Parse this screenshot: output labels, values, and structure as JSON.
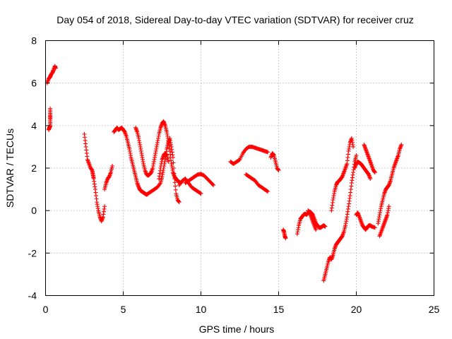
{
  "chart_data": {
    "type": "scatter",
    "title": "Day 054 of 2018, Sidereal Day-to-day VTEC variation (SDTVAR) for receiver cruz",
    "xlabel": "GPS time / hours",
    "ylabel": "SDTVAR / TECUs",
    "xlim": [
      0,
      25
    ],
    "ylim": [
      -4,
      8
    ],
    "xticks": [
      0,
      5,
      10,
      15,
      20,
      25
    ],
    "yticks": [
      -4,
      -2,
      0,
      2,
      4,
      6,
      8
    ],
    "grid": true,
    "marker": "plus",
    "color": "#ff0000",
    "segments": [
      {
        "name": "arc-01",
        "points": [
          [
            0.1,
            6.0
          ],
          [
            0.2,
            6.2
          ],
          [
            0.3,
            6.3
          ],
          [
            0.35,
            6.4
          ],
          [
            0.45,
            6.5
          ],
          [
            0.5,
            6.6
          ],
          [
            0.6,
            6.8
          ],
          [
            0.65,
            6.7
          ]
        ]
      },
      {
        "name": "arc-02",
        "points": [
          [
            0.2,
            3.8
          ],
          [
            0.25,
            3.9
          ],
          [
            0.3,
            4.0
          ],
          [
            0.3,
            4.3
          ],
          [
            0.3,
            4.5
          ],
          [
            0.3,
            4.8
          ]
        ]
      },
      {
        "name": "arc-03",
        "points": [
          [
            2.5,
            3.6
          ],
          [
            2.6,
            3.0
          ],
          [
            2.7,
            2.4
          ],
          [
            2.8,
            2.2
          ],
          [
            2.9,
            2.0
          ],
          [
            3.0,
            1.9
          ],
          [
            3.05,
            1.7
          ],
          [
            3.1,
            1.5
          ],
          [
            3.2,
            1.0
          ],
          [
            3.3,
            0.4
          ],
          [
            3.4,
            0.0
          ],
          [
            3.5,
            -0.3
          ],
          [
            3.6,
            -0.5
          ],
          [
            3.7,
            -0.3
          ],
          [
            3.8,
            0.2
          ]
        ]
      },
      {
        "name": "arc-04",
        "points": [
          [
            3.8,
            1.0
          ],
          [
            3.9,
            1.3
          ],
          [
            4.0,
            1.5
          ],
          [
            4.1,
            1.6
          ],
          [
            4.2,
            1.8
          ],
          [
            4.3,
            2.1
          ]
        ]
      },
      {
        "name": "arc-05",
        "points": [
          [
            4.4,
            3.7
          ],
          [
            4.5,
            3.8
          ],
          [
            4.6,
            3.9
          ],
          [
            4.7,
            3.8
          ],
          [
            4.8,
            3.85
          ],
          [
            4.9,
            3.9
          ],
          [
            5.0,
            3.8
          ],
          [
            5.1,
            3.7
          ],
          [
            5.2,
            3.5
          ],
          [
            5.3,
            3.2
          ],
          [
            5.4,
            2.9
          ],
          [
            5.5,
            2.5
          ],
          [
            5.6,
            2.2
          ],
          [
            5.7,
            1.9
          ],
          [
            5.8,
            1.6
          ],
          [
            5.9,
            1.3
          ],
          [
            6.0,
            1.1
          ],
          [
            6.1,
            0.95
          ],
          [
            6.2,
            0.9
          ],
          [
            6.3,
            0.85
          ],
          [
            6.4,
            0.8
          ],
          [
            6.5,
            0.75
          ],
          [
            6.6,
            0.8
          ],
          [
            6.8,
            0.9
          ],
          [
            7.0,
            1.0
          ],
          [
            7.2,
            1.1
          ],
          [
            7.4,
            1.3
          ],
          [
            7.5,
            1.6
          ],
          [
            7.6,
            2.0
          ],
          [
            7.7,
            2.4
          ],
          [
            7.8,
            2.9
          ],
          [
            7.9,
            3.2
          ],
          [
            8.0,
            3.4
          ],
          [
            8.1,
            3.0
          ],
          [
            8.2,
            2.5
          ],
          [
            8.3,
            1.5
          ],
          [
            8.4,
            0.8
          ],
          [
            8.5,
            0.5
          ],
          [
            8.6,
            0.4
          ]
        ]
      },
      {
        "name": "arc-06",
        "points": [
          [
            5.8,
            3.9
          ],
          [
            5.9,
            3.7
          ],
          [
            6.0,
            3.4
          ],
          [
            6.1,
            3.0
          ],
          [
            6.2,
            2.6
          ],
          [
            6.3,
            2.2
          ],
          [
            6.4,
            1.9
          ],
          [
            6.5,
            1.7
          ],
          [
            6.6,
            1.65
          ],
          [
            6.7,
            1.7
          ],
          [
            6.8,
            1.8
          ],
          [
            6.9,
            2.0
          ],
          [
            7.0,
            2.4
          ],
          [
            7.1,
            2.8
          ],
          [
            7.2,
            3.2
          ],
          [
            7.3,
            3.6
          ],
          [
            7.4,
            3.9
          ],
          [
            7.5,
            4.1
          ],
          [
            7.6,
            4.2
          ],
          [
            7.7,
            4.0
          ],
          [
            7.8,
            3.7
          ],
          [
            7.9,
            3.3
          ],
          [
            8.0,
            2.8
          ],
          [
            8.1,
            2.2
          ],
          [
            8.2,
            1.8
          ],
          [
            8.3,
            1.6
          ],
          [
            8.4,
            1.5
          ],
          [
            8.5,
            1.4
          ],
          [
            8.6,
            1.35
          ],
          [
            8.7,
            1.3
          ]
        ]
      },
      {
        "name": "arc-07",
        "points": [
          [
            7.3,
            1.5
          ],
          [
            7.4,
            2.0
          ],
          [
            7.5,
            2.4
          ],
          [
            7.6,
            2.6
          ],
          [
            7.7,
            2.7
          ],
          [
            7.8,
            2.6
          ],
          [
            7.9,
            2.3
          ]
        ]
      },
      {
        "name": "arc-08",
        "points": [
          [
            8.6,
            1.2
          ],
          [
            8.8,
            1.4
          ],
          [
            9.0,
            1.5
          ],
          [
            9.2,
            1.3
          ],
          [
            9.4,
            1.1
          ],
          [
            9.6,
            1.0
          ],
          [
            9.8,
            0.9
          ],
          [
            10.0,
            0.8
          ]
        ]
      },
      {
        "name": "arc-09",
        "points": [
          [
            9.0,
            1.3
          ],
          [
            9.2,
            1.4
          ],
          [
            9.4,
            1.5
          ],
          [
            9.6,
            1.6
          ],
          [
            9.8,
            1.7
          ],
          [
            10.0,
            1.72
          ],
          [
            10.2,
            1.65
          ],
          [
            10.4,
            1.5
          ],
          [
            10.6,
            1.35
          ],
          [
            10.8,
            1.2
          ]
        ]
      },
      {
        "name": "arc-10",
        "points": [
          [
            11.9,
            2.3
          ],
          [
            12.1,
            2.2
          ],
          [
            12.3,
            2.3
          ],
          [
            12.5,
            2.4
          ],
          [
            12.7,
            2.7
          ],
          [
            12.9,
            2.9
          ],
          [
            13.1,
            3.0
          ],
          [
            13.3,
            3.0
          ],
          [
            13.5,
            2.95
          ],
          [
            13.7,
            2.9
          ],
          [
            13.9,
            2.85
          ],
          [
            14.1,
            2.8
          ],
          [
            14.3,
            2.75
          ]
        ]
      },
      {
        "name": "arc-11",
        "points": [
          [
            12.9,
            1.7
          ],
          [
            13.1,
            1.6
          ],
          [
            13.3,
            1.5
          ],
          [
            13.5,
            1.4
          ],
          [
            13.7,
            1.2
          ],
          [
            13.9,
            1.1
          ],
          [
            14.1,
            1.0
          ],
          [
            14.3,
            0.9
          ]
        ]
      },
      {
        "name": "arc-12",
        "points": [
          [
            14.5,
            2.5
          ],
          [
            14.6,
            2.7
          ],
          [
            14.7,
            2.6
          ],
          [
            14.8,
            2.3
          ],
          [
            14.9,
            2.0
          ],
          [
            15.0,
            1.9
          ]
        ]
      },
      {
        "name": "arc-13",
        "points": [
          [
            15.3,
            -0.9
          ],
          [
            15.35,
            -1.0
          ],
          [
            15.4,
            -1.2
          ],
          [
            15.45,
            -1.3
          ]
        ]
      },
      {
        "name": "arc-14",
        "points": [
          [
            16.2,
            -1.1
          ],
          [
            16.3,
            -0.7
          ],
          [
            16.4,
            -0.4
          ],
          [
            16.5,
            -0.3
          ],
          [
            16.6,
            -0.2
          ],
          [
            16.7,
            -0.15
          ],
          [
            16.8,
            -0.2
          ],
          [
            16.9,
            -0.1
          ],
          [
            17.0,
            -0.05
          ],
          [
            17.1,
            -0.1
          ],
          [
            17.2,
            -0.2
          ],
          [
            17.3,
            -0.4
          ],
          [
            17.4,
            -0.6
          ],
          [
            17.5,
            -0.7
          ],
          [
            17.6,
            -0.8
          ],
          [
            17.7,
            -0.8
          ],
          [
            17.8,
            -0.75
          ],
          [
            17.9,
            -0.7
          ],
          [
            18.0,
            -0.75
          ]
        ]
      },
      {
        "name": "arc-15",
        "points": [
          [
            16.9,
            0.0
          ],
          [
            17.0,
            -0.1
          ],
          [
            17.1,
            -0.3
          ],
          [
            17.2,
            -0.5
          ],
          [
            17.3,
            -0.7
          ],
          [
            17.4,
            -0.9
          ]
        ]
      },
      {
        "name": "arc-16",
        "points": [
          [
            17.9,
            -3.3
          ],
          [
            18.0,
            -3.0
          ],
          [
            18.1,
            -2.7
          ],
          [
            18.2,
            -2.4
          ],
          [
            18.3,
            -2.2
          ],
          [
            18.4,
            -2.3
          ],
          [
            18.5,
            -2.1
          ],
          [
            18.6,
            -1.8
          ],
          [
            18.7,
            -1.6
          ],
          [
            18.8,
            -1.5
          ],
          [
            18.9,
            -1.4
          ],
          [
            19.0,
            -1.3
          ],
          [
            19.1,
            -1.2
          ],
          [
            19.2,
            -1.0
          ],
          [
            19.3,
            -0.7
          ],
          [
            19.4,
            -0.3
          ],
          [
            19.5,
            0.2
          ],
          [
            19.6,
            0.7
          ],
          [
            19.7,
            1.3
          ],
          [
            19.8,
            1.8
          ],
          [
            19.9,
            2.3
          ],
          [
            20.0,
            2.6
          ]
        ]
      },
      {
        "name": "arc-17",
        "points": [
          [
            18.4,
            0.0
          ],
          [
            18.5,
            0.5
          ],
          [
            18.6,
            0.9
          ],
          [
            18.7,
            1.2
          ],
          [
            18.8,
            1.35
          ],
          [
            18.9,
            1.4
          ],
          [
            19.0,
            1.5
          ],
          [
            19.1,
            1.6
          ],
          [
            19.2,
            1.8
          ],
          [
            19.3,
            2.0
          ],
          [
            19.4,
            2.2
          ],
          [
            19.5,
            2.8
          ],
          [
            19.6,
            3.2
          ],
          [
            19.7,
            3.4
          ],
          [
            19.8,
            3.0
          ]
        ]
      },
      {
        "name": "arc-18",
        "points": [
          [
            19.9,
            2.0
          ],
          [
            20.0,
            2.2
          ],
          [
            20.1,
            2.3
          ],
          [
            20.2,
            2.25
          ],
          [
            20.3,
            2.2
          ],
          [
            20.4,
            2.1
          ],
          [
            20.5,
            2.0
          ],
          [
            20.6,
            1.9
          ],
          [
            20.7,
            1.8
          ],
          [
            20.8,
            1.7
          ],
          [
            20.9,
            1.5
          ]
        ]
      },
      {
        "name": "arc-19",
        "points": [
          [
            20.0,
            -0.2
          ],
          [
            20.1,
            -0.1
          ],
          [
            20.2,
            -0.3
          ],
          [
            20.3,
            -0.5
          ],
          [
            20.4,
            -0.7
          ],
          [
            20.5,
            -0.8
          ],
          [
            20.6,
            -0.9
          ],
          [
            20.7,
            -0.8
          ],
          [
            20.8,
            -0.7
          ],
          [
            20.9,
            -0.7
          ],
          [
            21.0,
            -0.75
          ],
          [
            21.2,
            -0.8
          ]
        ]
      },
      {
        "name": "arc-20",
        "points": [
          [
            20.5,
            3.1
          ],
          [
            20.6,
            2.9
          ],
          [
            20.7,
            2.7
          ],
          [
            20.8,
            2.5
          ],
          [
            20.9,
            2.3
          ],
          [
            21.0,
            2.1
          ],
          [
            21.1,
            1.9
          ],
          [
            21.2,
            1.8
          ]
        ]
      },
      {
        "name": "arc-21",
        "points": [
          [
            21.4,
            -0.6
          ],
          [
            21.5,
            -0.2
          ],
          [
            21.6,
            0.2
          ],
          [
            21.7,
            0.5
          ],
          [
            21.8,
            0.8
          ],
          [
            21.9,
            1.0
          ],
          [
            22.0,
            1.1
          ],
          [
            22.1,
            1.2
          ],
          [
            22.2,
            1.4
          ],
          [
            22.3,
            1.7
          ],
          [
            22.4,
            2.0
          ],
          [
            22.5,
            2.2
          ],
          [
            22.6,
            2.4
          ],
          [
            22.7,
            2.6
          ],
          [
            22.8,
            2.9
          ],
          [
            22.9,
            3.1
          ]
        ]
      },
      {
        "name": "arc-22",
        "points": [
          [
            21.5,
            -1.2
          ],
          [
            21.6,
            -1.0
          ],
          [
            21.7,
            -0.8
          ],
          [
            21.8,
            -0.6
          ],
          [
            21.9,
            -0.4
          ],
          [
            22.0,
            -0.2
          ],
          [
            22.1,
            0.2
          ]
        ]
      }
    ]
  }
}
